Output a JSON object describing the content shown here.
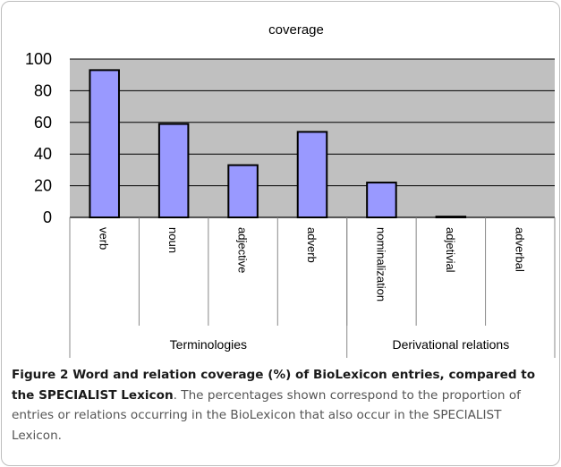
{
  "chart_data": {
    "type": "bar",
    "title": "coverage",
    "categories": [
      "verb",
      "noun",
      "adjective",
      "adverb",
      "nominalization",
      "adjetivial",
      "adverbal"
    ],
    "values": [
      93,
      59,
      33,
      54,
      22,
      0.5,
      0
    ],
    "groups": [
      {
        "label": "Terminologies",
        "count": 4
      },
      {
        "label": "Derivational relations",
        "count": 3
      }
    ],
    "ylim": [
      0,
      100
    ],
    "yticks": [
      0,
      20,
      40,
      60,
      80,
      100
    ],
    "grid": true,
    "legend": "none",
    "bar_color": "#9999ff",
    "plot_bg": "#c0c0c0"
  },
  "caption": {
    "bold": "Figure 2 Word and relation coverage (%) of BioLexicon entries, compared to the SPECIALIST Lexicon",
    "text": ". The percentages shown correspond to the proportion of entries or relations occurring in the BioLexicon that also occur in the SPECIALIST Lexicon."
  }
}
